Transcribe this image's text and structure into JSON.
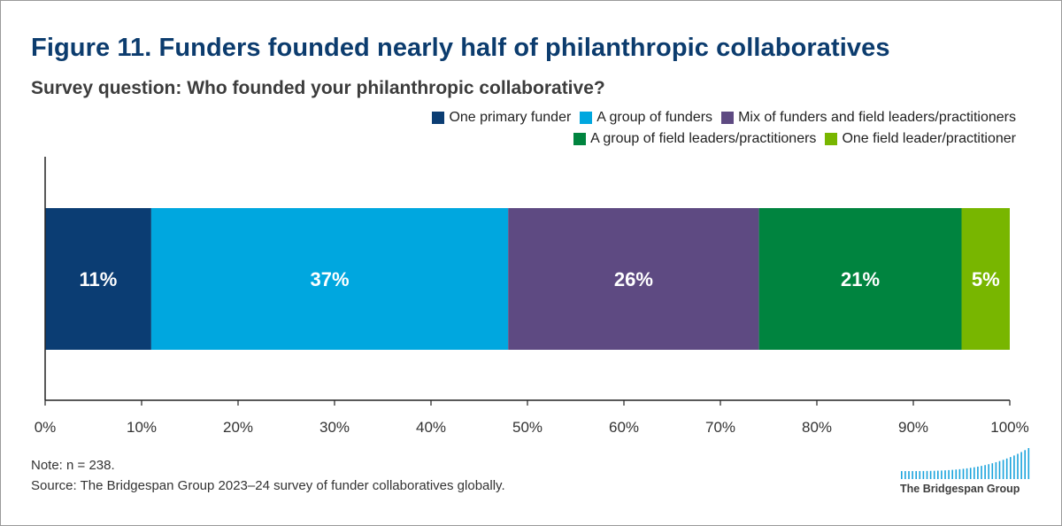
{
  "title": "Figure 11. Funders founded nearly half of philanthropic collaboratives",
  "subtitle": "Survey question: Who founded your philanthropic collaborative?",
  "colors": {
    "one_primary_funder": "#0b3d73",
    "group_of_funders": "#00a7df",
    "mix": "#5e4a82",
    "group_of_field_leaders": "#00843f",
    "one_field_leader": "#78b600",
    "title": "#0c3c6e"
  },
  "chart_data": {
    "type": "bar",
    "orientation": "horizontal",
    "stacked": true,
    "xlim": [
      0,
      100
    ],
    "x_ticks": [
      "0%",
      "10%",
      "20%",
      "30%",
      "40%",
      "50%",
      "60%",
      "70%",
      "80%",
      "90%",
      "100%"
    ],
    "legend_position": "top-right",
    "grid": false,
    "series": [
      {
        "name": "One primary funder",
        "values": [
          11
        ],
        "label": "11%",
        "color": "#0b3d73"
      },
      {
        "name": "A group of funders",
        "values": [
          37
        ],
        "label": "37%",
        "color": "#00a7df"
      },
      {
        "name": "Mix of funders and field leaders/practitioners",
        "values": [
          26
        ],
        "label": "26%",
        "color": "#5e4a82"
      },
      {
        "name": "A group of field leaders/practitioners",
        "values": [
          21
        ],
        "label": "21%",
        "color": "#00843f"
      },
      {
        "name": "One field leader/practitioner",
        "values": [
          5
        ],
        "label": "5%",
        "color": "#78b600"
      }
    ]
  },
  "notes": {
    "note": "Note: n = 238.",
    "source": "Source: The Bridgespan Group 2023–24 survey of funder collaboratives globally."
  },
  "logo": {
    "text": "The Bridgespan Group"
  }
}
